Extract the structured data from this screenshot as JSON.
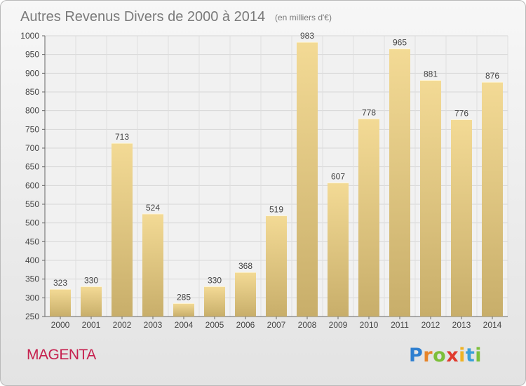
{
  "chart_data": {
    "type": "bar",
    "title": "Autres Revenus Divers de 2000 à 2014",
    "subtitle": "(en milliers d'€)",
    "categories": [
      "2000",
      "2001",
      "2002",
      "2003",
      "2004",
      "2005",
      "2006",
      "2007",
      "2008",
      "2009",
      "2010",
      "2011",
      "2012",
      "2013",
      "2014"
    ],
    "values": [
      323,
      330,
      713,
      524,
      285,
      330,
      368,
      519,
      983,
      607,
      778,
      965,
      881,
      776,
      876
    ],
    "ylim": [
      250,
      1000
    ],
    "yticks": [
      250,
      300,
      350,
      400,
      450,
      500,
      550,
      600,
      650,
      700,
      750,
      800,
      850,
      900,
      950,
      1000
    ],
    "grid": true,
    "bar_color_top": "#f3da95",
    "bar_color_bottom": "#c8ae6a"
  },
  "place": "MAGENTA",
  "brand": {
    "name": "Proxiti",
    "letter_colors": [
      "#2e7fd0",
      "#e6842a",
      "#7cbf3a",
      "#e03b2e",
      "#f0b323",
      "#3aa0d8",
      "#7cbf3a"
    ]
  }
}
